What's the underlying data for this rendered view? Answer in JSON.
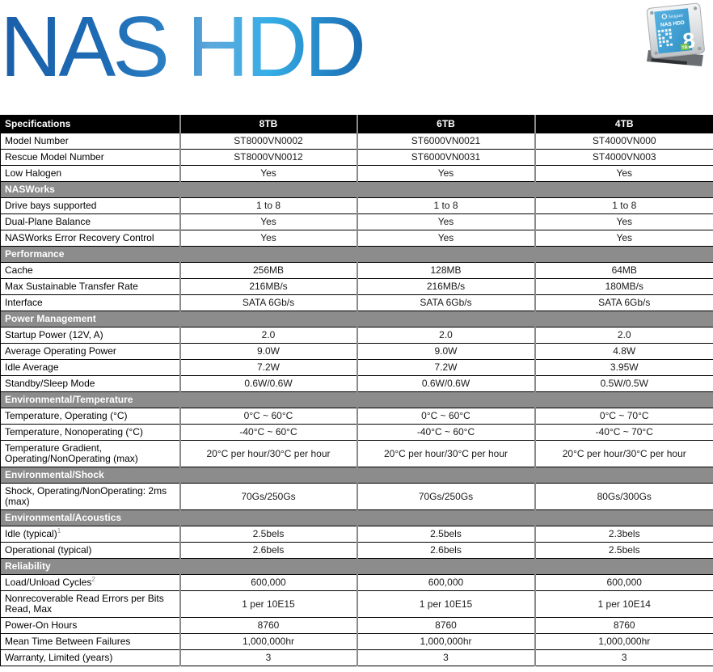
{
  "hero": {
    "title": "NAS HDD"
  },
  "product_image": {
    "brand": "Seagate",
    "label_title": "NAS HDD",
    "capacity": "8",
    "capacity_unit": "TB"
  },
  "colors": {
    "header_bg": "#000000",
    "section_bg": "#8c8c8c",
    "divider_gray": "#8a8a8a",
    "title_blue_dark": "#1a5fa9",
    "title_blue_mid": "#5ea9dc",
    "title_blue_cyan": "#35aee6",
    "hdd_label_blue": "#45a6d8",
    "tb_badge_green": "#72bf44"
  },
  "table": {
    "columns": [
      "Specifications",
      "8TB",
      "6TB",
      "4TB"
    ],
    "rows": [
      {
        "type": "data",
        "label": "Model Number",
        "values": [
          "ST8000VN0002",
          "ST6000VN0021",
          "ST4000VN000"
        ]
      },
      {
        "type": "data",
        "label": "Rescue Model Number",
        "values": [
          "ST8000VN0012",
          "ST6000VN0031",
          "ST4000VN003"
        ]
      },
      {
        "type": "data",
        "label": "Low Halogen",
        "values": [
          "Yes",
          "Yes",
          "Yes"
        ]
      },
      {
        "type": "section",
        "label": "NASWorks"
      },
      {
        "type": "data",
        "label": "Drive bays supported",
        "values": [
          "1 to 8",
          "1 to 8",
          "1 to 8"
        ]
      },
      {
        "type": "data",
        "label": "Dual-Plane Balance",
        "values": [
          "Yes",
          "Yes",
          "Yes"
        ]
      },
      {
        "type": "data",
        "label": "NASWorks Error Recovery Control",
        "values": [
          "Yes",
          "Yes",
          "Yes"
        ]
      },
      {
        "type": "section",
        "label": "Performance"
      },
      {
        "type": "data",
        "label": "Cache",
        "values": [
          "256MB",
          "128MB",
          "64MB"
        ]
      },
      {
        "type": "data",
        "label": "Max Sustainable Transfer Rate",
        "values": [
          "216MB/s",
          "216MB/s",
          "180MB/s"
        ]
      },
      {
        "type": "data",
        "label": "Interface",
        "values": [
          "SATA 6Gb/s",
          "SATA 6Gb/s",
          "SATA 6Gb/s"
        ]
      },
      {
        "type": "section",
        "label": "Power Management"
      },
      {
        "type": "data",
        "label": "Startup Power (12V, A)",
        "values": [
          "2.0",
          "2.0",
          "2.0"
        ]
      },
      {
        "type": "data",
        "label": "Average Operating Power",
        "values": [
          "9.0W",
          "9.0W",
          "4.8W"
        ]
      },
      {
        "type": "data",
        "label": "Idle Average",
        "values": [
          "7.2W",
          "7.2W",
          "3.95W"
        ]
      },
      {
        "type": "data",
        "label": "Standby/Sleep Mode",
        "values": [
          "0.6W/0.6W",
          "0.6W/0.6W",
          "0.5W/0.5W"
        ]
      },
      {
        "type": "section",
        "label": "Environmental/Temperature"
      },
      {
        "type": "data",
        "label": "Temperature, Operating (°C)",
        "values": [
          "0°C ~ 60°C",
          "0°C ~ 60°C",
          "0°C ~ 70°C"
        ]
      },
      {
        "type": "data",
        "label": "Temperature, Nonoperating (°C)",
        "values": [
          "-40°C ~ 60°C",
          "-40°C ~ 60°C",
          "-40°C ~ 70°C"
        ]
      },
      {
        "type": "data",
        "label": "Temperature Gradient, Operating/NonOperating (max)",
        "values": [
          "20°C per hour/30°C per hour",
          "20°C per hour/30°C per hour",
          "20°C per hour/30°C per hour"
        ]
      },
      {
        "type": "section",
        "label": "Environmental/Shock"
      },
      {
        "type": "data",
        "label": "Shock, Operating/NonOperating: 2ms (max)",
        "values": [
          "70Gs/250Gs",
          "70Gs/250Gs",
          "80Gs/300Gs"
        ]
      },
      {
        "type": "section",
        "label": "Environmental/Acoustics"
      },
      {
        "type": "data",
        "label": "Idle (typical)",
        "sup": "1",
        "values": [
          "2.5bels",
          "2.5bels",
          "2.3bels"
        ]
      },
      {
        "type": "data",
        "label": "Operational (typical)",
        "values": [
          "2.6bels",
          "2.6bels",
          "2.5bels"
        ]
      },
      {
        "type": "section",
        "label": "Reliability"
      },
      {
        "type": "data",
        "label": "Load/Unload Cycles",
        "sup": "2",
        "values": [
          "600,000",
          "600,000",
          "600,000"
        ]
      },
      {
        "type": "data",
        "label": "Nonrecoverable Read Errors per Bits Read, Max",
        "values": [
          "1 per 10E15",
          "1 per 10E15",
          "1 per 10E14"
        ]
      },
      {
        "type": "data",
        "label": "Power-On Hours",
        "values": [
          "8760",
          "8760",
          "8760"
        ]
      },
      {
        "type": "data",
        "label": "Mean Time Between Failures",
        "values": [
          "1,000,000hr",
          "1,000,000hr",
          "1,000,000hr"
        ]
      },
      {
        "type": "data",
        "label": "Warranty, Limited (years)",
        "values": [
          "3",
          "3",
          "3"
        ]
      }
    ]
  }
}
